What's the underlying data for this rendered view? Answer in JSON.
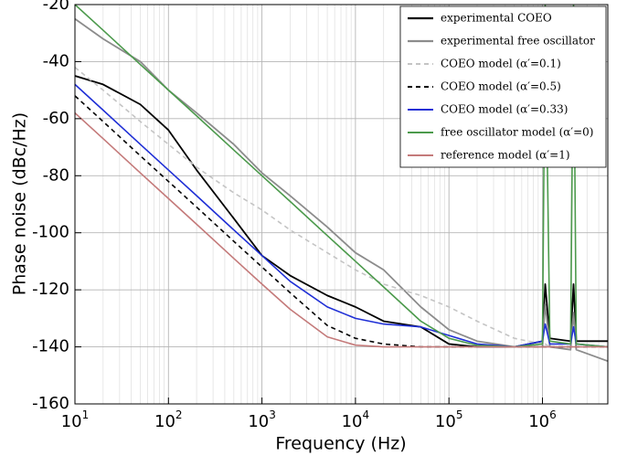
{
  "chart_data": {
    "type": "line",
    "xlabel": "Frequency (Hz)",
    "ylabel": "Phase noise (dBc/Hz)",
    "xscale": "log",
    "xlim": [
      10,
      5000000
    ],
    "ylim": [
      -160,
      -20
    ],
    "xticks": [
      {
        "value": 10,
        "label": "10",
        "exponent": "1"
      },
      {
        "value": 100,
        "label": "10",
        "exponent": "2"
      },
      {
        "value": 1000,
        "label": "10",
        "exponent": "3"
      },
      {
        "value": 10000,
        "label": "10",
        "exponent": "4"
      },
      {
        "value": 100000,
        "label": "10",
        "exponent": "5"
      },
      {
        "value": 1000000,
        "label": "10",
        "exponent": "6"
      }
    ],
    "xminorticks": [
      20,
      30,
      40,
      50,
      60,
      70,
      80,
      90,
      200,
      300,
      400,
      500,
      600,
      700,
      800,
      900,
      2000,
      3000,
      4000,
      5000,
      6000,
      7000,
      8000,
      9000,
      20000,
      30000,
      40000,
      50000,
      60000,
      70000,
      80000,
      90000,
      200000,
      300000,
      400000,
      500000,
      600000,
      700000,
      800000,
      900000,
      2000000,
      3000000,
      4000000
    ],
    "yticks": [
      -160,
      -140,
      -120,
      -100,
      -80,
      -60,
      -40,
      -20
    ],
    "grid": true,
    "legend": "upper right",
    "x": [
      10,
      20,
      50,
      100,
      200,
      500,
      1000,
      2000,
      5000,
      10000,
      20000,
      50000,
      100000,
      200000,
      500000,
      1000000,
      1070000,
      1200000,
      2000000,
      2150000,
      2300000,
      5000000
    ],
    "series": [
      {
        "name": "experimental COEO",
        "color": "#000000",
        "dash": "solid",
        "width": 1.8,
        "values": [
          -45,
          -48,
          -55,
          -64,
          -78,
          -95,
          -108,
          -115,
          -122,
          -126,
          -131,
          -133,
          -139,
          -140,
          -140,
          -138,
          -118,
          -137,
          -138,
          -118,
          -138,
          -138
        ]
      },
      {
        "name": "experimental free oscillator",
        "color": "#8c8c8c",
        "dash": "solid",
        "width": 1.8,
        "values": [
          -25,
          -32,
          -40,
          -50,
          -58,
          -69,
          -79,
          -87,
          -98,
          -107,
          -113,
          -126,
          -134,
          -138,
          -140,
          -140,
          -125,
          -140,
          -141,
          -128,
          -141,
          -145
        ]
      },
      {
        "name": "COEO model (α′=0.1)",
        "color": "#c4c4c4",
        "dash": "dashed",
        "width": 1.6,
        "values": [
          -42,
          -50,
          -61,
          -69,
          -77,
          -86,
          -92,
          -99,
          -107,
          -113,
          -118,
          -122,
          -126,
          -131,
          -137,
          -139,
          -139,
          -140,
          -140,
          -140,
          -140,
          -140
        ]
      },
      {
        "name": "COEO model (α′=0.5)",
        "color": "#000000",
        "dash": "dashed",
        "width": 1.6,
        "values": [
          -52,
          -61,
          -73,
          -82,
          -91,
          -103,
          -112,
          -121,
          -132.5,
          -137,
          -139,
          -140,
          -140,
          -140,
          -140,
          -140,
          -140,
          -140,
          -140,
          -140,
          -140,
          -140
        ]
      },
      {
        "name": "COEO model (α′=0.33)",
        "color": "#1f2fd6",
        "dash": "solid",
        "width": 1.6,
        "values": [
          -48,
          -57,
          -69,
          -78,
          -87,
          -99,
          -108,
          -117,
          -126,
          -130,
          -132,
          -133,
          -136,
          -139,
          -140,
          -138,
          -132,
          -139,
          -139,
          -133,
          -139,
          -140
        ]
      },
      {
        "name": "free oscillator model (α′=0)",
        "color": "#4c9a4c",
        "dash": "solid",
        "width": 1.6,
        "values": [
          -20,
          -29,
          -41,
          -50,
          -59,
          -71,
          -80,
          -89,
          -101,
          -110,
          -119,
          -131,
          -137,
          -139.5,
          -140,
          -139,
          -20,
          -138,
          -139,
          -20,
          -139,
          -140
        ]
      },
      {
        "name": "reference model (α′=1)",
        "color": "#c47a7a",
        "dash": "solid",
        "width": 1.6,
        "values": [
          -58,
          -67,
          -79,
          -88,
          -97,
          -109,
          -118,
          -126.8,
          -136.5,
          -139.4,
          -140,
          -140,
          -140,
          -140,
          -140,
          -140,
          -140,
          -140,
          -140,
          -140,
          -140,
          -140
        ]
      }
    ]
  }
}
